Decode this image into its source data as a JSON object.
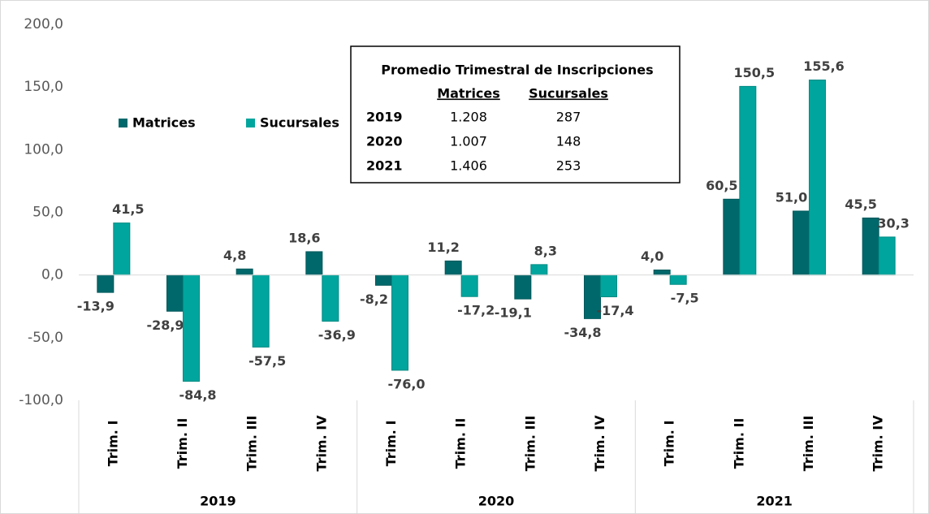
{
  "chart_data": {
    "type": "bar",
    "categories": [
      "Trim. I",
      "Trim. II",
      "Trim. III",
      "Trim. IV",
      "Trim. I",
      "Trim. II",
      "Trim. III",
      "Trim. IV",
      "Trim. I",
      "Trim. II",
      "Trim. III",
      "Trim. IV"
    ],
    "groups": [
      "2019",
      "2020",
      "2021"
    ],
    "series": [
      {
        "name": "Matrices",
        "color": "#00686b",
        "values": [
          -13.9,
          -28.9,
          4.8,
          18.6,
          -8.2,
          11.2,
          -19.1,
          -34.8,
          4.0,
          60.5,
          51.0,
          45.5
        ],
        "value_labels": [
          "-13,9",
          "-28,9",
          "4,8",
          "18,6",
          "-8,2",
          "11,2",
          "-19,1",
          "-34,8",
          "4,0",
          "60,5",
          "51,0",
          "45,5"
        ]
      },
      {
        "name": "Sucursales",
        "color": "#00a59d",
        "values": [
          41.5,
          -84.8,
          -57.5,
          -36.9,
          -76.0,
          -17.2,
          8.3,
          -17.4,
          -7.5,
          150.5,
          155.6,
          30.3
        ],
        "value_labels": [
          "41,5",
          "-84,8",
          "-57,5",
          "-36,9",
          "-76,0",
          "-17,2",
          "8,3",
          "-17,4",
          "-7,5",
          "150,5",
          "155,6",
          "30,3"
        ]
      }
    ],
    "ylim": [
      -100,
      200
    ],
    "yticks": [
      {
        "value": -100,
        "label": "-100,0"
      },
      {
        "value": -50,
        "label": "-50,0"
      },
      {
        "value": 0,
        "label": "0,0"
      },
      {
        "value": 50,
        "label": "50,0"
      },
      {
        "value": 100,
        "label": "100,0"
      },
      {
        "value": 150,
        "label": "150,0"
      },
      {
        "value": 200,
        "label": "200,0"
      }
    ],
    "grid": false,
    "legend": "upper left",
    "table": {
      "title": "Promedio Trimestral de Inscripciones",
      "columns": [
        "Matrices",
        "Sucursales"
      ],
      "rows": [
        [
          "2019",
          "1.208",
          "287"
        ],
        [
          "2020",
          "1.007",
          "148"
        ],
        [
          "2021",
          "1.406",
          "253"
        ]
      ]
    }
  }
}
